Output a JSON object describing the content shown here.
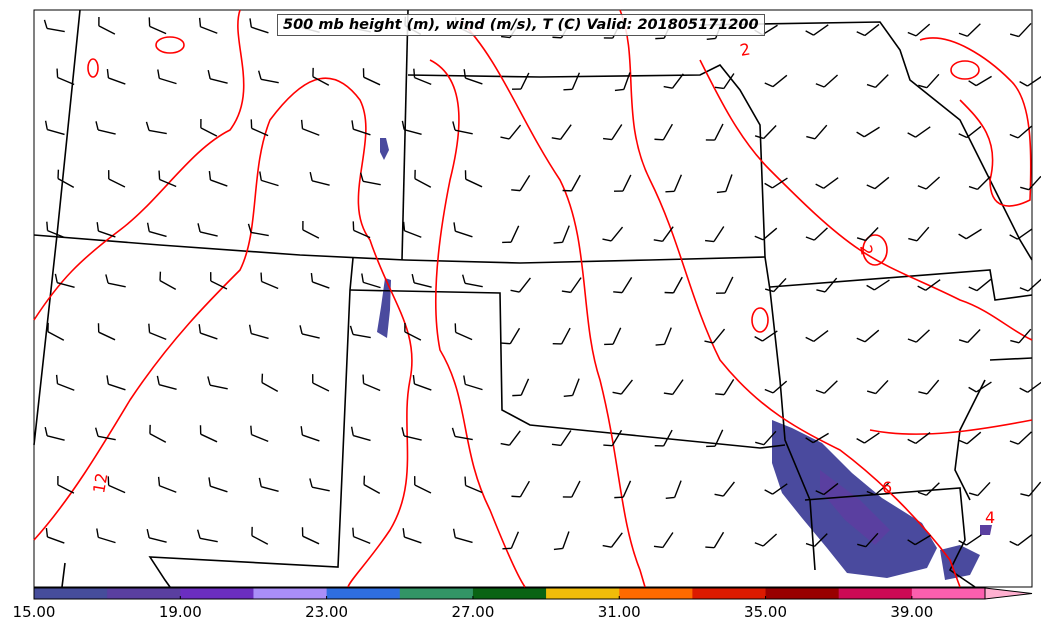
{
  "title": "500 mb height (m), wind (m/s), T (C) Valid: 201805171200",
  "contour_labels": [
    "2",
    "2",
    "12",
    "6",
    "4"
  ],
  "colorbar": {
    "ticks": [
      "15.00",
      "19.00",
      "23.00",
      "27.00",
      "31.00",
      "35.00",
      "39.00"
    ],
    "min": 15,
    "max": 41,
    "step": 2,
    "extend": "max",
    "colors": [
      "#464d9b",
      "#5a3fa0",
      "#6b2ec0",
      "#a98ef8",
      "#2f6ee0",
      "#329566",
      "#0a6314",
      "#f0bc0a",
      "#ff6a00",
      "#dc1a00",
      "#990000",
      "#cc0a55",
      "#fb5fae"
    ],
    "over_color": "#ffb0d0"
  },
  "colors": {
    "contour": "#ff0000",
    "borders": "#000000",
    "fill": "#4a4a9e"
  }
}
